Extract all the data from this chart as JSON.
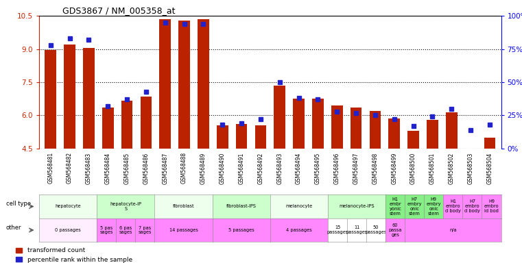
{
  "title": "GDS3867 / NM_005358_at",
  "samples": [
    "GSM568481",
    "GSM568482",
    "GSM568483",
    "GSM568484",
    "GSM568485",
    "GSM568486",
    "GSM568487",
    "GSM568488",
    "GSM568489",
    "GSM568490",
    "GSM568491",
    "GSM568492",
    "GSM568493",
    "GSM568494",
    "GSM568495",
    "GSM568496",
    "GSM568497",
    "GSM568498",
    "GSM568499",
    "GSM568500",
    "GSM568501",
    "GSM568502",
    "GSM568503",
    "GSM568504"
  ],
  "transformed_count": [
    8.95,
    9.2,
    9.05,
    6.35,
    6.65,
    6.85,
    10.35,
    10.3,
    10.35,
    5.55,
    5.6,
    5.55,
    7.35,
    6.75,
    6.75,
    6.45,
    6.35,
    6.2,
    5.85,
    5.3,
    5.8,
    6.15,
    4.5,
    5.0
  ],
  "percentile": [
    78,
    83,
    82,
    32,
    37,
    43,
    95,
    94,
    94,
    18,
    19,
    22,
    50,
    38,
    37,
    28,
    27,
    25,
    22,
    17,
    24,
    30,
    14,
    18
  ],
  "ylim_left": [
    4.5,
    10.5
  ],
  "ylim_right": [
    0,
    100
  ],
  "yticks_left": [
    4.5,
    6.0,
    7.5,
    9.0,
    10.5
  ],
  "yticks_right": [
    0,
    25,
    50,
    75,
    100
  ],
  "ytick_labels_right": [
    "0%",
    "25%",
    "50%",
    "75%",
    "100%"
  ],
  "bar_color": "#bb2200",
  "dot_color": "#2222cc",
  "cell_type_groups": [
    {
      "label": "hepatocyte",
      "start": 0,
      "end": 3,
      "color": "#eeffee"
    },
    {
      "label": "hepatocyte-iP\nS",
      "start": 3,
      "end": 6,
      "color": "#ccffcc"
    },
    {
      "label": "fibroblast",
      "start": 6,
      "end": 9,
      "color": "#eeffee"
    },
    {
      "label": "fibroblast-IPS",
      "start": 9,
      "end": 12,
      "color": "#ccffcc"
    },
    {
      "label": "melanocyte",
      "start": 12,
      "end": 15,
      "color": "#eeffee"
    },
    {
      "label": "melanocyte-IPS",
      "start": 15,
      "end": 18,
      "color": "#ccffcc"
    },
    {
      "label": "H1\nembr\nyonic\nstem",
      "start": 18,
      "end": 19,
      "color": "#88ee88"
    },
    {
      "label": "H7\nembry\nonic\nstem",
      "start": 19,
      "end": 20,
      "color": "#88ee88"
    },
    {
      "label": "H9\nembry\nonic\nstem",
      "start": 20,
      "end": 21,
      "color": "#88ee88"
    },
    {
      "label": "H1\nembro\nd body",
      "start": 21,
      "end": 22,
      "color": "#ff88ff"
    },
    {
      "label": "H7\nembro\nd body",
      "start": 22,
      "end": 23,
      "color": "#ff88ff"
    },
    {
      "label": "H9\nembro\nid bod",
      "start": 23,
      "end": 24,
      "color": "#ff88ff"
    }
  ],
  "other_groups": [
    {
      "label": "0 passages",
      "start": 0,
      "end": 3,
      "color": "#ffeeff"
    },
    {
      "label": "5 pas\nsages",
      "start": 3,
      "end": 4,
      "color": "#ff88ff"
    },
    {
      "label": "6 pas\nsages",
      "start": 4,
      "end": 5,
      "color": "#ff88ff"
    },
    {
      "label": "7 pas\nsages",
      "start": 5,
      "end": 6,
      "color": "#ff88ff"
    },
    {
      "label": "14 passages",
      "start": 6,
      "end": 9,
      "color": "#ff88ff"
    },
    {
      "label": "5 passages",
      "start": 9,
      "end": 12,
      "color": "#ff88ff"
    },
    {
      "label": "4 passages",
      "start": 12,
      "end": 15,
      "color": "#ff88ff"
    },
    {
      "label": "15\npassages",
      "start": 15,
      "end": 16,
      "color": "#ffffff"
    },
    {
      "label": "11\npassages",
      "start": 16,
      "end": 17,
      "color": "#ffffff"
    },
    {
      "label": "50\npassages",
      "start": 17,
      "end": 18,
      "color": "#ffffff"
    },
    {
      "label": "60\npassa\nges",
      "start": 18,
      "end": 19,
      "color": "#ff88ff"
    },
    {
      "label": "n/a",
      "start": 19,
      "end": 24,
      "color": "#ff88ff"
    }
  ]
}
